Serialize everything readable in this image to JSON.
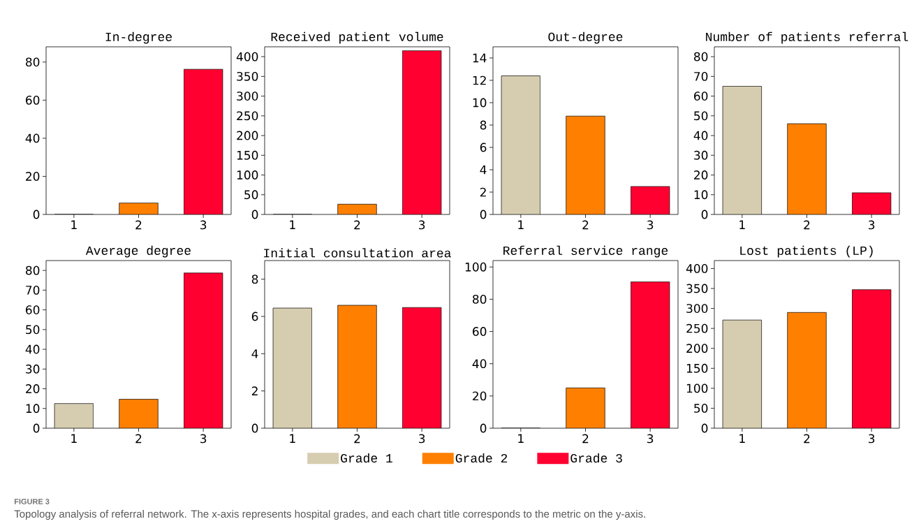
{
  "chart_data": [
    {
      "type": "bar",
      "title": "In-degree",
      "categories": [
        "1",
        "2",
        "3"
      ],
      "ylim": [
        0,
        88
      ],
      "yticks": [
        0,
        20,
        40,
        60,
        80
      ],
      "series": [
        {
          "color": "#d6cdb0",
          "values": [
            0,
            null,
            null
          ]
        },
        {
          "color": "#ff8000",
          "values": [
            null,
            6,
            null
          ]
        },
        {
          "color": "#ff0030",
          "values": [
            null,
            null,
            76.2
          ]
        }
      ]
    },
    {
      "type": "bar",
      "title": "Received patient volume",
      "categories": [
        "1",
        "2",
        "3"
      ],
      "ylim": [
        0,
        425
      ],
      "yticks": [
        0,
        50,
        100,
        150,
        200,
        250,
        300,
        350,
        400
      ],
      "series": [
        {
          "color": "#d6cdb0",
          "values": [
            0,
            null,
            null
          ]
        },
        {
          "color": "#ff8000",
          "values": [
            null,
            26,
            null
          ]
        },
        {
          "color": "#ff0030",
          "values": [
            null,
            null,
            415
          ]
        }
      ]
    },
    {
      "type": "bar",
      "title": "Out-degree",
      "categories": [
        "1",
        "2",
        "3"
      ],
      "ylim": [
        0,
        15
      ],
      "yticks": [
        0,
        2,
        4,
        6,
        8,
        10,
        12,
        14
      ],
      "series": [
        {
          "color": "#d6cdb0",
          "values": [
            12.4,
            null,
            null
          ]
        },
        {
          "color": "#ff8000",
          "values": [
            null,
            8.8,
            null
          ]
        },
        {
          "color": "#ff0030",
          "values": [
            null,
            null,
            2.5
          ]
        }
      ]
    },
    {
      "type": "bar",
      "title": "Number of patients referral",
      "categories": [
        "1",
        "2",
        "3"
      ],
      "ylim": [
        0,
        85
      ],
      "yticks": [
        0,
        10,
        20,
        30,
        40,
        50,
        60,
        70,
        80
      ],
      "series": [
        {
          "color": "#d6cdb0",
          "values": [
            65,
            null,
            null
          ]
        },
        {
          "color": "#ff8000",
          "values": [
            null,
            46,
            null
          ]
        },
        {
          "color": "#ff0030",
          "values": [
            null,
            null,
            11
          ]
        }
      ]
    },
    {
      "type": "bar",
      "title": "Average degree",
      "categories": [
        "1",
        "2",
        "3"
      ],
      "ylim": [
        0,
        85
      ],
      "yticks": [
        0,
        10,
        20,
        30,
        40,
        50,
        60,
        70,
        80
      ],
      "series": [
        {
          "color": "#d6cdb0",
          "values": [
            12.5,
            null,
            null
          ]
        },
        {
          "color": "#ff8000",
          "values": [
            null,
            14.7,
            null
          ]
        },
        {
          "color": "#ff0030",
          "values": [
            null,
            null,
            78.7
          ]
        }
      ]
    },
    {
      "type": "bar",
      "title": "Initial consultation area",
      "categories": [
        "1",
        "2",
        "3"
      ],
      "ylim": [
        0,
        9
      ],
      "yticks": [
        0,
        2,
        4,
        6,
        8
      ],
      "legend": "bottom",
      "series": [
        {
          "name": "Grade 1",
          "color": "#d6cdb0",
          "values": [
            6.45,
            null,
            null
          ]
        },
        {
          "name": "Grade 2",
          "color": "#ff8000",
          "values": [
            null,
            6.6,
            null
          ]
        },
        {
          "name": "Grade 3",
          "color": "#ff0030",
          "values": [
            null,
            null,
            6.48
          ]
        }
      ]
    },
    {
      "type": "bar",
      "title": "Referral service range",
      "categories": [
        "1",
        "2",
        "3"
      ],
      "ylim": [
        0,
        104
      ],
      "yticks": [
        0,
        20,
        40,
        60,
        80,
        100
      ],
      "series": [
        {
          "color": "#d6cdb0",
          "values": [
            0,
            null,
            null
          ]
        },
        {
          "color": "#ff8000",
          "values": [
            null,
            25,
            null
          ]
        },
        {
          "color": "#ff0030",
          "values": [
            null,
            null,
            90.8
          ]
        }
      ]
    },
    {
      "type": "bar",
      "title": "Lost patients (LP)",
      "categories": [
        "1",
        "2",
        "3"
      ],
      "ylim": [
        0,
        420
      ],
      "yticks": [
        0,
        50,
        100,
        150,
        200,
        250,
        300,
        350,
        400
      ],
      "annotations": [
        "FIGURE 3",
        "Topology analysis of referral network. The x-axis represents hospital grades, and each chart title corresponds to the metric on the y-axis."
      ],
      "series": [
        {
          "color": "#d6cdb0",
          "values": [
            271,
            null,
            null
          ]
        },
        {
          "color": "#ff8000",
          "values": [
            null,
            290,
            null
          ]
        },
        {
          "color": "#ff0030",
          "values": [
            null,
            null,
            347
          ]
        }
      ]
    }
  ]
}
